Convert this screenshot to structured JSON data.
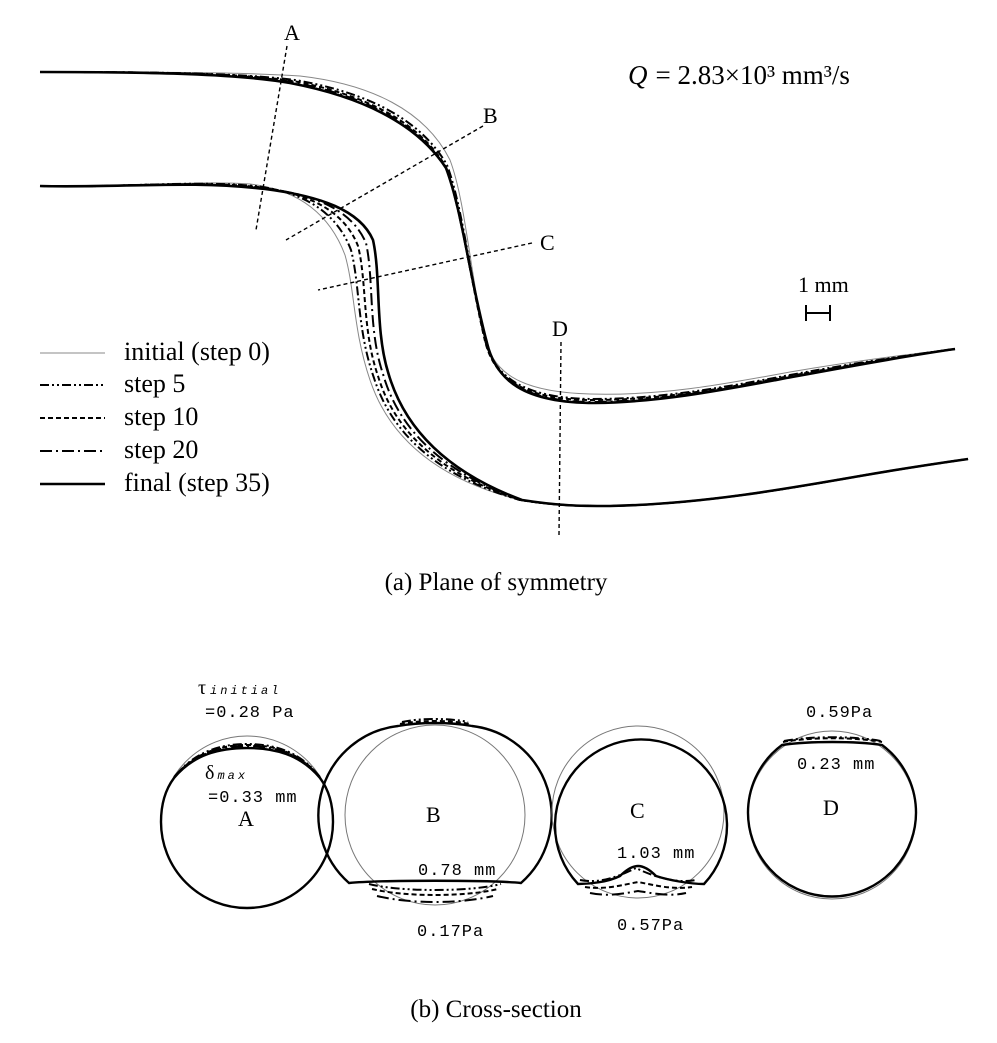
{
  "flow_rate_label": "Q = 2.83×10³ mm³/s",
  "flow_rate": {
    "symbol": "Q",
    "value_text": "= 2.83×10³ mm³/s"
  },
  "scale_bar_label": "1 mm",
  "section_markers": [
    "A",
    "B",
    "C",
    "D"
  ],
  "legend": [
    {
      "id": "initial",
      "label": "initial (step 0)",
      "style": "thin solid"
    },
    {
      "id": "step5",
      "label": "step 5",
      "style": "dash-dot-dot"
    },
    {
      "id": "step10",
      "label": "step 10",
      "style": "dashed"
    },
    {
      "id": "step20",
      "label": "step 20",
      "style": "dash-dot"
    },
    {
      "id": "final",
      "label": "final (step 35)",
      "style": "thick solid"
    }
  ],
  "caption_a": "(a) Plane of symmetry",
  "caption_b": "(b) Cross-section",
  "cross_sections": [
    {
      "id": "A",
      "label": "A",
      "wss_symbol": "τ",
      "wss_subscript": "initial",
      "wss_value": "=0.28 Pa",
      "disp_symbol": "δ",
      "disp_subscript": "max",
      "disp_value": "=0.33 mm"
    },
    {
      "id": "B",
      "label": "B",
      "disp_value": "0.78 mm",
      "wss_value": "0.17Pa"
    },
    {
      "id": "C",
      "label": "C",
      "disp_value": "1.03 mm",
      "wss_value": "0.57Pa"
    },
    {
      "id": "D",
      "label": "D",
      "wss_value": "0.59Pa",
      "disp_value": "0.23 mm"
    }
  ]
}
